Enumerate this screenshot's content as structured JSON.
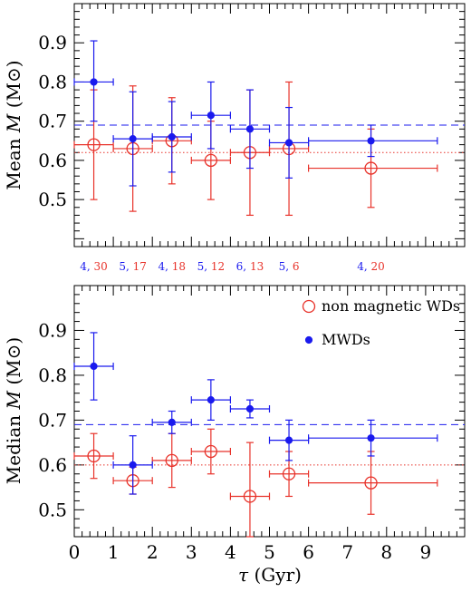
{
  "chart_data": [
    {
      "type": "scatter",
      "panel": "top",
      "ylabel": "Mean M (M⊙)",
      "ylabel_main": "Mean ",
      "ylabel_var": "M",
      "ylabel_unit": "(M⊙)",
      "xlim": [
        0,
        10
      ],
      "ylim": [
        0.38,
        1.0
      ],
      "yticks": [
        0.5,
        0.6,
        0.7,
        0.8,
        0.9
      ],
      "ytick_labels": [
        "0.5",
        "0.6",
        "0.7",
        "0.8",
        "0.9"
      ],
      "grid": false,
      "reference_lines": [
        {
          "series": "MWDs",
          "style": "dashed",
          "y": 0.69
        },
        {
          "series": "non magnetic WDs",
          "style": "dotted",
          "y": 0.62
        }
      ],
      "series": [
        {
          "name": "MWDs",
          "color": "#1a1aee",
          "marker": "filled-circle",
          "x": [
            0.5,
            1.5,
            2.5,
            3.5,
            4.5,
            5.5,
            7.6
          ],
          "xerr_low": [
            0.5,
            0.5,
            0.5,
            0.5,
            0.5,
            0.5,
            1.6
          ],
          "xerr_high": [
            0.5,
            0.5,
            0.5,
            0.5,
            0.5,
            0.5,
            1.7
          ],
          "y": [
            0.8,
            0.655,
            0.66,
            0.715,
            0.68,
            0.645,
            0.65
          ],
          "yerr_low": [
            0.1,
            0.12,
            0.09,
            0.085,
            0.1,
            0.09,
            0.04
          ],
          "yerr_high": [
            0.105,
            0.12,
            0.09,
            0.085,
            0.1,
            0.09,
            0.04
          ]
        },
        {
          "name": "non magnetic WDs",
          "color": "#e8322a",
          "marker": "open-circle",
          "x": [
            0.5,
            1.5,
            2.5,
            3.5,
            4.5,
            5.5,
            7.6
          ],
          "xerr_low": [
            0.5,
            0.5,
            0.5,
            0.5,
            0.5,
            0.5,
            1.6
          ],
          "xerr_high": [
            0.5,
            0.5,
            0.5,
            0.5,
            0.5,
            0.5,
            1.7
          ],
          "y": [
            0.64,
            0.63,
            0.65,
            0.6,
            0.62,
            0.63,
            0.58
          ],
          "yerr_low": [
            0.14,
            0.16,
            0.11,
            0.1,
            0.16,
            0.17,
            0.1
          ],
          "yerr_high": [
            0.14,
            0.16,
            0.11,
            0.1,
            0.16,
            0.17,
            0.1
          ]
        }
      ],
      "counts": [
        {
          "x": 0.5,
          "mwd": "4,",
          "nonmag": "30"
        },
        {
          "x": 1.5,
          "mwd": "5,",
          "nonmag": "17"
        },
        {
          "x": 2.5,
          "mwd": "4,",
          "nonmag": "18"
        },
        {
          "x": 3.5,
          "mwd": "5,",
          "nonmag": "12"
        },
        {
          "x": 4.5,
          "mwd": "6,",
          "nonmag": "13"
        },
        {
          "x": 5.5,
          "mwd": "5,",
          "nonmag": "6"
        },
        {
          "x": 7.6,
          "mwd": "4,",
          "nonmag": "20"
        }
      ]
    },
    {
      "type": "scatter",
      "panel": "bottom",
      "ylabel": "Median M (M⊙)",
      "ylabel_main": "Median ",
      "ylabel_var": "M",
      "ylabel_unit": "(M⊙)",
      "xlabel": "τ (Gyr)",
      "xlabel_var": "τ",
      "xlabel_unit": "(Gyr)",
      "xlim": [
        0,
        10
      ],
      "ylim": [
        0.44,
        1.0
      ],
      "xticks": [
        0,
        1,
        2,
        3,
        4,
        5,
        6,
        7,
        8,
        9
      ],
      "xtick_labels": [
        "0",
        "1",
        "2",
        "3",
        "4",
        "5",
        "6",
        "7",
        "8",
        "9"
      ],
      "yticks": [
        0.5,
        0.6,
        0.7,
        0.8,
        0.9
      ],
      "ytick_labels": [
        "0.5",
        "0.6",
        "0.7",
        "0.8",
        "0.9"
      ],
      "grid": false,
      "legend_position": "top-right",
      "reference_lines": [
        {
          "series": "MWDs",
          "style": "dashed",
          "y": 0.69
        },
        {
          "series": "non magnetic WDs",
          "style": "dotted",
          "y": 0.6
        }
      ],
      "series": [
        {
          "name": "MWDs",
          "color": "#1a1aee",
          "marker": "filled-circle",
          "x": [
            0.5,
            1.5,
            2.5,
            3.5,
            4.5,
            5.5,
            7.6
          ],
          "xerr_low": [
            0.5,
            0.5,
            0.5,
            0.5,
            0.5,
            0.5,
            1.6
          ],
          "xerr_high": [
            0.5,
            0.5,
            0.5,
            0.5,
            0.5,
            0.5,
            1.7
          ],
          "y": [
            0.82,
            0.6,
            0.695,
            0.745,
            0.725,
            0.655,
            0.66
          ],
          "yerr_low": [
            0.075,
            0.065,
            0.025,
            0.045,
            0.02,
            0.045,
            0.04
          ],
          "yerr_high": [
            0.075,
            0.065,
            0.025,
            0.045,
            0.02,
            0.045,
            0.04
          ]
        },
        {
          "name": "non magnetic WDs",
          "color": "#e8322a",
          "marker": "open-circle",
          "x": [
            0.5,
            1.5,
            2.5,
            3.5,
            4.5,
            5.5,
            7.6
          ],
          "xerr_low": [
            0.5,
            0.5,
            0.5,
            0.5,
            0.5,
            0.5,
            1.6
          ],
          "xerr_high": [
            0.5,
            0.5,
            0.5,
            0.5,
            0.5,
            0.5,
            1.7
          ],
          "y": [
            0.62,
            0.565,
            0.61,
            0.63,
            0.53,
            0.58,
            0.56
          ],
          "yerr_low": [
            0.05,
            0.03,
            0.06,
            0.05,
            0.09,
            0.05,
            0.07
          ],
          "yerr_high": [
            0.05,
            0.03,
            0.06,
            0.05,
            0.12,
            0.05,
            0.07
          ]
        }
      ],
      "legend": [
        {
          "label": "non magnetic WDs",
          "series": "non magnetic WDs"
        },
        {
          "label": "MWDs",
          "series": "MWDs"
        }
      ]
    }
  ]
}
